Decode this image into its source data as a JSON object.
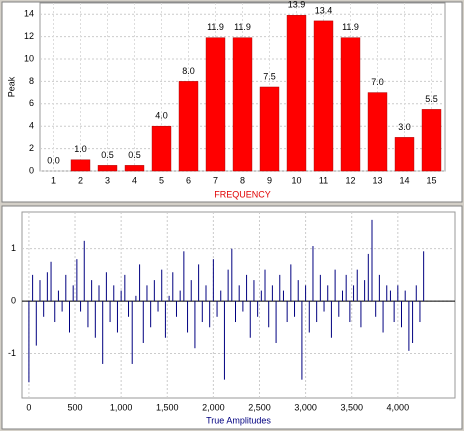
{
  "chart_data": [
    {
      "type": "bar",
      "y_label": "Peak",
      "x_label": "FREQUENCY",
      "categories": [
        "1",
        "2",
        "3",
        "4",
        "5",
        "6",
        "7",
        "8",
        "9",
        "10",
        "11",
        "12",
        "13",
        "14",
        "15"
      ],
      "values": [
        0,
        1,
        0.5,
        0.5,
        4,
        8,
        11.9,
        11.9,
        7.5,
        13.9,
        13.4,
        11.9,
        7,
        3,
        5.5
      ],
      "value_labels": [
        "0.0",
        "1.0",
        "0.5",
        "0.5",
        "4.0",
        "8.0",
        "11.9",
        "11.9",
        "7.5",
        "13.9",
        "13.4",
        "11.9",
        "7.0",
        "3.0",
        "5.5"
      ],
      "color": "#ff0000",
      "ylim": [
        0,
        15
      ],
      "yticks": [
        0,
        2,
        4,
        6,
        8,
        10,
        12,
        14
      ],
      "grid": true
    },
    {
      "type": "stem",
      "x_label": "True Amplitudes",
      "color": "#000080",
      "x": [
        0,
        40,
        80,
        120,
        160,
        200,
        240,
        280,
        320,
        360,
        400,
        440,
        480,
        520,
        560,
        600,
        640,
        680,
        720,
        760,
        800,
        840,
        880,
        920,
        960,
        1000,
        1040,
        1080,
        1120,
        1160,
        1200,
        1240,
        1280,
        1320,
        1360,
        1400,
        1440,
        1480,
        1520,
        1560,
        1600,
        1640,
        1680,
        1720,
        1760,
        1800,
        1840,
        1880,
        1920,
        1960,
        2000,
        2040,
        2080,
        2120,
        2160,
        2200,
        2240,
        2280,
        2320,
        2360,
        2400,
        2440,
        2480,
        2520,
        2560,
        2600,
        2640,
        2680,
        2720,
        2760,
        2800,
        2840,
        2880,
        2920,
        2960,
        3000,
        3040,
        3080,
        3120,
        3160,
        3200,
        3240,
        3280,
        3320,
        3360,
        3400,
        3440,
        3480,
        3520,
        3560,
        3600,
        3640,
        3680,
        3720,
        3760,
        3800,
        3840,
        3880,
        3920,
        3960,
        4000,
        4040,
        4080,
        4120,
        4160,
        4200,
        4240,
        4280
      ],
      "values": [
        -1.55,
        0.5,
        -0.85,
        0.4,
        -0.3,
        0.55,
        0.75,
        -0.4,
        0.2,
        -0.2,
        0.5,
        -0.6,
        0.3,
        0.8,
        -0.2,
        1.15,
        -0.5,
        0.4,
        -0.7,
        0.3,
        -1.2,
        0.55,
        -0.4,
        0.3,
        -0.6,
        0.2,
        0.5,
        -0.3,
        -1.2,
        0.1,
        0.7,
        -0.8,
        0.3,
        -0.5,
        0.4,
        -0.2,
        0.6,
        -0.7,
        0.1,
        0.55,
        -0.3,
        0.2,
        0.95,
        -0.6,
        0.4,
        -0.9,
        0.7,
        -0.4,
        0.3,
        -0.5,
        0.8,
        -0.3,
        0.2,
        -1.5,
        0.6,
        1.0,
        -0.4,
        0.3,
        -0.2,
        0.5,
        -0.7,
        0.4,
        -0.3,
        0.2,
        0.6,
        -0.5,
        0.3,
        -0.8,
        0.5,
        0.2,
        -0.4,
        0.7,
        -0.3,
        0.4,
        -1.5,
        0.3,
        -0.6,
        1.05,
        -0.4,
        0.5,
        -0.2,
        0.3,
        -0.7,
        0.6,
        -0.3,
        0.2,
        0.5,
        -0.4,
        0.3,
        0.6,
        -0.5,
        0.4,
        0.9,
        1.55,
        -0.3,
        0.5,
        -0.6,
        0.3,
        0.2,
        -0.4,
        0.3,
        -0.5,
        0.2,
        -0.95,
        -0.8,
        0.3,
        -0.4,
        0.95
      ],
      "xlim": [
        -75,
        4620
      ],
      "ylim": [
        -1.85,
        1.7
      ],
      "xticks": [
        0,
        500,
        {
          "value": 1000,
          "label": "1,000"
        },
        {
          "value": 1500,
          "label": "1,500"
        },
        {
          "value": 2000,
          "label": "2,000"
        },
        {
          "value": 2500,
          "label": "2,500"
        },
        {
          "value": 3000,
          "label": "3,000"
        },
        {
          "value": 3500,
          "label": "3,500"
        },
        {
          "value": 4000,
          "label": "4,000"
        }
      ],
      "yticks": [
        -1,
        0,
        1
      ],
      "grid": true
    }
  ]
}
